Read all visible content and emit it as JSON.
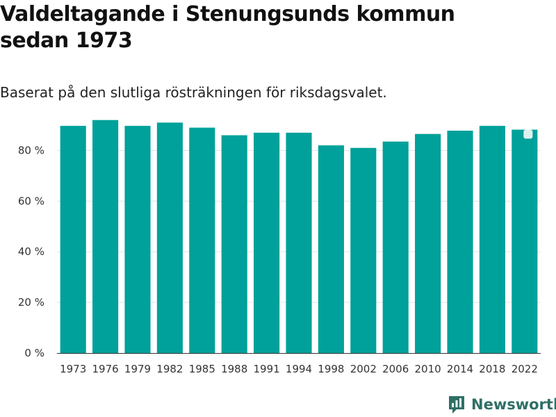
{
  "title": "Valdeltagande i Stenungsunds kommun sedan 1973",
  "subtitle": "Baserat på den slutliga rösträkningen för riksdagsvalet.",
  "brand": {
    "name": "Newsworthy",
    "logo_icon": "newsworthy-logo-icon"
  },
  "colors": {
    "bar": "#00a19a",
    "grid": "#e3e3e3",
    "brand": "#2f6f66"
  },
  "chart_data": {
    "type": "bar",
    "title": "Valdeltagande i Stenungsunds kommun sedan 1973",
    "subtitle": "Baserat på den slutliga rösträkningen för riksdagsvalet.",
    "xlabel": "",
    "ylabel": "",
    "ylim": [
      0,
      90
    ],
    "yticks": [
      0,
      20,
      40,
      60,
      80
    ],
    "ytick_labels": [
      "0 %",
      "20 %",
      "40 %",
      "60 %",
      "80 %"
    ],
    "grid": true,
    "categories": [
      "1973",
      "1976",
      "1979",
      "1982",
      "1985",
      "1988",
      "1991",
      "1994",
      "1998",
      "2002",
      "2006",
      "2010",
      "2014",
      "2018",
      "2022"
    ],
    "values": [
      89.7,
      92.0,
      89.7,
      91.0,
      89.0,
      86.0,
      87.0,
      87.0,
      82.0,
      81.0,
      83.5,
      86.5,
      87.8,
      89.7,
      88.2
    ],
    "highlight_marker": {
      "category": "2022",
      "shape": "rounded-square"
    }
  }
}
